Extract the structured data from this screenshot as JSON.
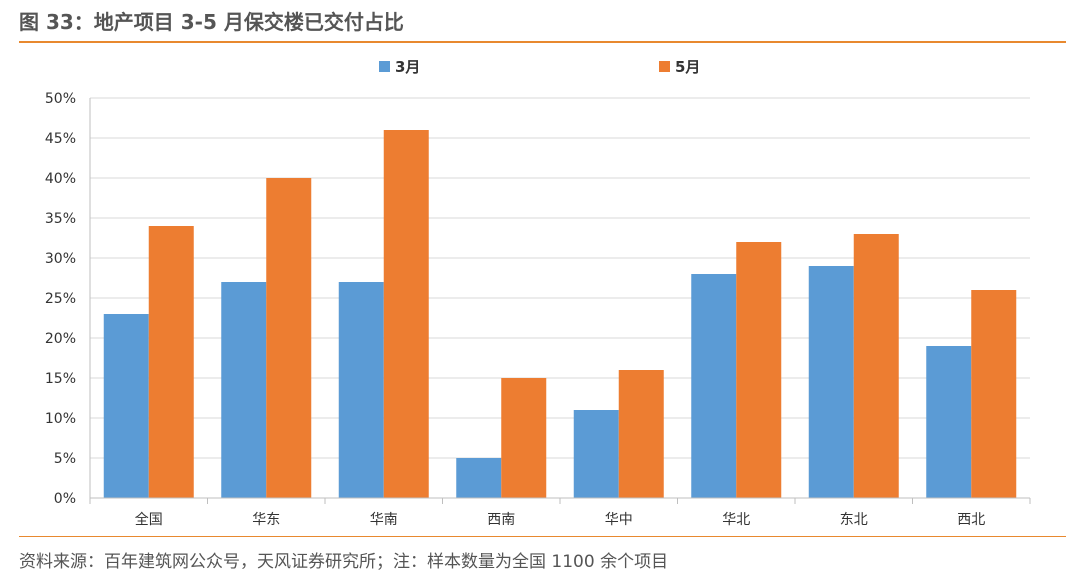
{
  "header": {
    "title": "图 33：地产项目 3-5 月保交楼已交付占比"
  },
  "footer": {
    "source": "资料来源：百年建筑网公众号，天风证券研究所；注：样本数量为全国 1100 余个项目"
  },
  "chart_data": {
    "type": "bar",
    "categories": [
      "全国",
      "华东",
      "华南",
      "西南",
      "华中",
      "华北",
      "东北",
      "西北"
    ],
    "series": [
      {
        "name": "3月",
        "color": "#5b9bd5",
        "values": [
          23,
          27,
          27,
          5,
          11,
          28,
          29,
          19
        ]
      },
      {
        "name": "5月",
        "color": "#ed7d31",
        "values": [
          34,
          40,
          46,
          15,
          16,
          32,
          33,
          26
        ]
      }
    ],
    "y_ticks": [
      "0%",
      "5%",
      "10%",
      "15%",
      "20%",
      "25%",
      "30%",
      "35%",
      "40%",
      "45%",
      "50%"
    ],
    "ylim": [
      0,
      50
    ],
    "grid": true,
    "legend_position": "top"
  }
}
